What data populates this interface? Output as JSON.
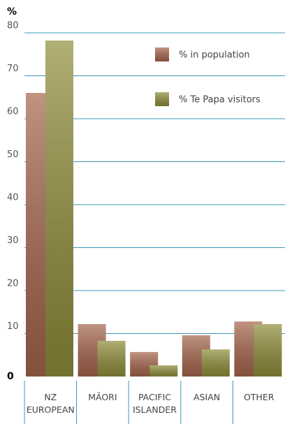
{
  "chart_data": {
    "type": "bar",
    "y_label": "%",
    "categories": [
      "NZ EUROPEAN",
      "MĀORI",
      "PACIFIC ISLANDER",
      "ASIAN",
      "OTHER"
    ],
    "series": [
      {
        "name": "% in population",
        "color": "#a5654c",
        "values": [
          66,
          12.2,
          5.7,
          9.6,
          12.8
        ]
      },
      {
        "name": "% Te Papa visitors",
        "color": "#8f8d3a",
        "values": [
          78.2,
          8.3,
          2.6,
          6.3,
          12.2
        ]
      }
    ],
    "ylim": [
      0,
      80
    ],
    "yticks": [
      0,
      10,
      20,
      30,
      40,
      50,
      60,
      70,
      80
    ],
    "grid": true,
    "legend": "upper right"
  }
}
